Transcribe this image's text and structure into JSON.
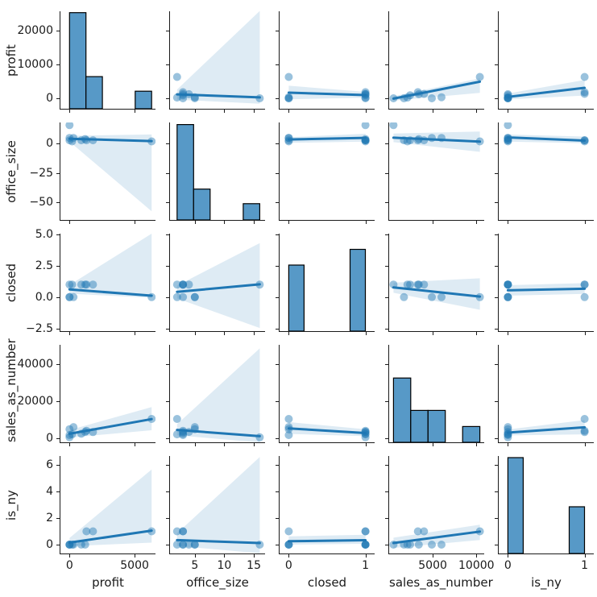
{
  "figure": {
    "background": "#ffffff"
  },
  "colors": {
    "point": "#1f77b4",
    "point_opacity": 0.45,
    "regression_line": "#1f77b4",
    "ci_fill": "rgba(31,119,180,0.15)",
    "hist_fill": "#5799c7",
    "hist_edge": "#000000",
    "spine": "#1a1a1a",
    "text": "#1a1a1a"
  },
  "chart_data": {
    "type": "scatter-matrix",
    "description": "seaborn pairplot with regression lines, 5 variables, diagonal histograms",
    "variables": [
      "profit",
      "office_size",
      "closed",
      "sales_as_number",
      "is_ny"
    ],
    "observations": {
      "profit": [
        0,
        0,
        200,
        900,
        1200,
        1300,
        0,
        300,
        6300,
        1800
      ],
      "office_size": [
        16,
        3,
        2,
        3,
        4,
        3,
        5,
        5,
        2,
        3
      ],
      "closed": [
        1,
        0,
        1,
        1,
        1,
        1,
        0,
        0,
        0,
        1
      ],
      "sales_as_number": [
        500,
        1700,
        2100,
        2400,
        3400,
        4000,
        4900,
        6000,
        10400,
        3300
      ],
      "is_ny": [
        0,
        0,
        0,
        0,
        0,
        1,
        0,
        0,
        1,
        1
      ]
    },
    "axes": [
      {
        "name": "profit",
        "label": "profit",
        "x_range": [
          -700,
          6600
        ],
        "y_range": [
          -3100,
          25700
        ],
        "x_ticks": [
          0,
          5000
        ],
        "x_tick_labels": [
          "0",
          "5000"
        ],
        "y_ticks": [
          0,
          10000,
          20000
        ],
        "y_tick_labels": [
          "0",
          "10000",
          "20000"
        ]
      },
      {
        "name": "office_size",
        "label": "office_size",
        "x_range": [
          0.8,
          16.9
        ],
        "y_range": [
          -65.5,
          18.3
        ],
        "x_ticks": [
          5,
          10,
          15
        ],
        "x_tick_labels": [
          "5",
          "10",
          "15"
        ],
        "y_ticks": [
          0,
          -25,
          -50
        ],
        "y_tick_labels": [
          "0",
          "−25",
          "−50"
        ]
      },
      {
        "name": "closed",
        "label": "closed",
        "x_range": [
          -0.12,
          1.12
        ],
        "y_range": [
          -2.7,
          5.05
        ],
        "x_ticks": [
          0,
          1
        ],
        "x_tick_labels": [
          "0",
          "1"
        ],
        "y_ticks": [
          5.0,
          2.5,
          0.0,
          -2.5
        ],
        "y_tick_labels": [
          "5.0",
          "2.5",
          "0.0",
          "−2.5"
        ]
      },
      {
        "name": "sales_as_number",
        "label": "sales_as_number",
        "x_range": [
          0,
          10900
        ],
        "y_range": [
          -2200,
          50400
        ],
        "x_ticks": [
          5000,
          10000
        ],
        "x_tick_labels": [
          "5000",
          "10000"
        ],
        "y_ticks": [
          0,
          20000,
          40000
        ],
        "y_tick_labels": [
          "0",
          "20000",
          "40000"
        ]
      },
      {
        "name": "is_ny",
        "label": "is_ny",
        "x_range": [
          -0.12,
          1.12
        ],
        "y_range": [
          -0.67,
          6.67
        ],
        "x_ticks": [
          0,
          1
        ],
        "x_tick_labels": [
          "0",
          "1"
        ],
        "y_ticks": [
          0,
          2,
          4,
          6
        ],
        "y_tick_labels": [
          "0",
          "2",
          "4",
          "6"
        ]
      }
    ],
    "histograms": [
      {
        "row": 0,
        "bars": [
          {
            "x0": 0,
            "x1": 1260,
            "top": 25300
          },
          {
            "x0": 1260,
            "x1": 2520,
            "top": 6400
          },
          {
            "x0": 5040,
            "x1": 6300,
            "top": 2100
          }
        ]
      },
      {
        "row": 1,
        "bars": [
          {
            "x0": 2,
            "x1": 4.8,
            "top": 16.5
          },
          {
            "x0": 4.8,
            "x1": 7.6,
            "top": -39
          },
          {
            "x0": 13.2,
            "x1": 16,
            "top": -51.5
          }
        ]
      },
      {
        "row": 2,
        "bars": [
          {
            "x0": 0,
            "x1": 0.2,
            "top": 2.55
          },
          {
            "x0": 0.8,
            "x1": 1.0,
            "top": 3.8
          }
        ]
      },
      {
        "row": 3,
        "bars": [
          {
            "x0": 500,
            "x1": 2480,
            "top": 32500
          },
          {
            "x0": 2480,
            "x1": 4460,
            "top": 15000
          },
          {
            "x0": 4460,
            "x1": 6440,
            "top": 15000
          },
          {
            "x0": 8420,
            "x1": 10400,
            "top": 6300
          }
        ]
      },
      {
        "row": 4,
        "bars": [
          {
            "x0": 0,
            "x1": 0.2,
            "top": 6.55
          },
          {
            "x0": 0.8,
            "x1": 1.0,
            "top": 2.85
          }
        ]
      }
    ],
    "regressions": [
      {
        "row": 0,
        "col": 1,
        "line": [
          [
            2,
            1150
          ],
          [
            16,
            250
          ]
        ],
        "ci": [
          [
            2,
            -400
          ],
          [
            2,
            2600
          ],
          [
            16,
            25800
          ],
          [
            16,
            -1600
          ]
        ]
      },
      {
        "row": 0,
        "col": 2,
        "line": [
          [
            0,
            1650
          ],
          [
            1,
            950
          ]
        ],
        "ci": [
          [
            0,
            -300
          ],
          [
            0,
            3700
          ],
          [
            1,
            1900
          ],
          [
            1,
            150
          ]
        ]
      },
      {
        "row": 0,
        "col": 3,
        "line": [
          [
            500,
            -100
          ],
          [
            10400,
            4900
          ]
        ],
        "ci": [
          [
            500,
            -700
          ],
          [
            500,
            600
          ],
          [
            10400,
            5900
          ],
          [
            10400,
            1600
          ]
        ]
      },
      {
        "row": 0,
        "col": 4,
        "line": [
          [
            0,
            400
          ],
          [
            1,
            3100
          ]
        ],
        "ci": [
          [
            0,
            -350
          ],
          [
            0,
            1400
          ],
          [
            1,
            5400
          ],
          [
            1,
            800
          ]
        ]
      },
      {
        "row": 1,
        "col": 0,
        "line": [
          [
            0,
            4.3
          ],
          [
            6300,
            2.3
          ]
        ],
        "ci": [
          [
            0,
            1.8
          ],
          [
            0,
            6.8
          ],
          [
            6300,
            8
          ],
          [
            6300,
            -58
          ]
        ]
      },
      {
        "row": 1,
        "col": 2,
        "line": [
          [
            0,
            3.7
          ],
          [
            1,
            5.1
          ]
        ],
        "ci": [
          [
            0,
            0.8
          ],
          [
            0,
            5.6
          ],
          [
            1,
            8.6
          ],
          [
            1,
            1.8
          ]
        ]
      },
      {
        "row": 1,
        "col": 3,
        "line": [
          [
            500,
            5.2
          ],
          [
            10400,
            1.8
          ]
        ],
        "ci": [
          [
            500,
            1.4
          ],
          [
            500,
            8.8
          ],
          [
            10400,
            10.5
          ],
          [
            10400,
            -7
          ]
        ]
      },
      {
        "row": 1,
        "col": 4,
        "line": [
          [
            0,
            5.4
          ],
          [
            1,
            2.7
          ]
        ],
        "ci": [
          [
            0,
            1.8
          ],
          [
            0,
            7.9
          ],
          [
            1,
            6.2
          ],
          [
            1,
            0.5
          ]
        ]
      },
      {
        "row": 2,
        "col": 0,
        "line": [
          [
            0,
            0.62
          ],
          [
            6300,
            0.12
          ]
        ],
        "ci": [
          [
            0,
            0.28
          ],
          [
            0,
            0.97
          ],
          [
            6300,
            5.05
          ],
          [
            6300,
            -0.05
          ]
        ]
      },
      {
        "row": 2,
        "col": 1,
        "line": [
          [
            2,
            0.42
          ],
          [
            16,
            1.02
          ]
        ],
        "ci": [
          [
            2,
            -0.1
          ],
          [
            2,
            0.92
          ],
          [
            16,
            4.3
          ],
          [
            16,
            -2.45
          ]
        ]
      },
      {
        "row": 2,
        "col": 3,
        "line": [
          [
            500,
            0.78
          ],
          [
            10400,
            0.05
          ]
        ],
        "ci": [
          [
            500,
            0.35
          ],
          [
            500,
            1.15
          ],
          [
            10400,
            1.5
          ],
          [
            10400,
            -1.0
          ]
        ]
      },
      {
        "row": 2,
        "col": 4,
        "line": [
          [
            0,
            0.55
          ],
          [
            1,
            0.67
          ]
        ],
        "ci": [
          [
            0,
            0.12
          ],
          [
            0,
            0.95
          ],
          [
            1,
            1.12
          ],
          [
            1,
            0.26
          ]
        ]
      },
      {
        "row": 3,
        "col": 0,
        "line": [
          [
            0,
            2400
          ],
          [
            6300,
            10300
          ]
        ],
        "ci": [
          [
            0,
            300
          ],
          [
            0,
            4400
          ],
          [
            6300,
            16800
          ],
          [
            6300,
            4300
          ]
        ]
      },
      {
        "row": 3,
        "col": 1,
        "line": [
          [
            2,
            4500
          ],
          [
            16,
            1100
          ]
        ],
        "ci": [
          [
            2,
            1600
          ],
          [
            2,
            7600
          ],
          [
            16,
            48500
          ],
          [
            16,
            -2300
          ]
        ]
      },
      {
        "row": 3,
        "col": 2,
        "line": [
          [
            0,
            5300
          ],
          [
            1,
            2800
          ]
        ],
        "ci": [
          [
            0,
            2300
          ],
          [
            0,
            8700
          ],
          [
            1,
            4900
          ],
          [
            1,
            1100
          ]
        ]
      },
      {
        "row": 3,
        "col": 4,
        "line": [
          [
            0,
            3000
          ],
          [
            1,
            5900
          ]
        ],
        "ci": [
          [
            0,
            1500
          ],
          [
            0,
            4700
          ],
          [
            1,
            9800
          ],
          [
            1,
            2100
          ]
        ]
      },
      {
        "row": 4,
        "col": 0,
        "line": [
          [
            0,
            0.15
          ],
          [
            6300,
            1.05
          ]
        ],
        "ci": [
          [
            0,
            -0.12
          ],
          [
            0,
            0.5
          ],
          [
            6300,
            5.65
          ],
          [
            6300,
            0.15
          ]
        ]
      },
      {
        "row": 4,
        "col": 1,
        "line": [
          [
            2,
            0.34
          ],
          [
            16,
            0.12
          ]
        ],
        "ci": [
          [
            2,
            -0.1
          ],
          [
            2,
            0.85
          ],
          [
            16,
            6.6
          ],
          [
            16,
            -0.65
          ]
        ]
      },
      {
        "row": 4,
        "col": 2,
        "line": [
          [
            0,
            0.25
          ],
          [
            1,
            0.33
          ]
        ],
        "ci": [
          [
            0,
            0.0
          ],
          [
            0,
            0.62
          ],
          [
            1,
            0.74
          ],
          [
            1,
            0.06
          ]
        ]
      },
      {
        "row": 4,
        "col": 3,
        "line": [
          [
            500,
            0.12
          ],
          [
            10400,
            0.98
          ]
        ],
        "ci": [
          [
            500,
            -0.25
          ],
          [
            500,
            0.52
          ],
          [
            10400,
            1.5
          ],
          [
            10400,
            0.35
          ]
        ]
      }
    ],
    "legend": null,
    "grid": false
  }
}
